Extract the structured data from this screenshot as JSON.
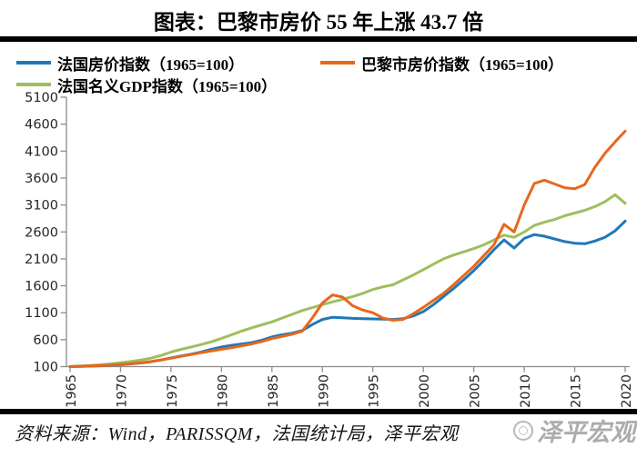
{
  "title": "图表：巴黎市房价 55 年上涨 43.7 倍",
  "legend": {
    "items": [
      {
        "label": "法国房价指数（1965=100）",
        "color": "#1F78B8"
      },
      {
        "label": "巴黎市房价指数（1965=100）",
        "color": "#E8671B"
      },
      {
        "label": "法国名义GDP指数（1965=100）",
        "color": "#9FBE5E"
      }
    ]
  },
  "source": {
    "label": "资料来源：Wind，PARISSQM，法国统计局，泽平宏观"
  },
  "watermark": {
    "label": "泽平宏观"
  },
  "chart_data": {
    "type": "line",
    "title": "图表：巴黎市房价 55 年上涨 43.7 倍",
    "xlabel": "",
    "ylabel": "",
    "ylim": [
      100,
      5100
    ],
    "yticks": [
      100,
      600,
      1100,
      1600,
      2100,
      2600,
      3100,
      3600,
      4100,
      4600,
      5100
    ],
    "xticks": [
      1965,
      1970,
      1975,
      1980,
      1985,
      1990,
      1995,
      2000,
      2005,
      2010,
      2015,
      2020
    ],
    "x_label_rotation": -90,
    "grid": false,
    "legend_position": "top-left",
    "axis_color": "#8c8c8c",
    "x": [
      1965,
      1966,
      1967,
      1968,
      1969,
      1970,
      1971,
      1972,
      1973,
      1974,
      1975,
      1976,
      1977,
      1978,
      1979,
      1980,
      1981,
      1982,
      1983,
      1984,
      1985,
      1986,
      1987,
      1988,
      1989,
      1990,
      1991,
      1992,
      1993,
      1994,
      1995,
      1996,
      1997,
      1998,
      1999,
      2000,
      2001,
      2002,
      2003,
      2004,
      2005,
      2006,
      2007,
      2008,
      2009,
      2010,
      2011,
      2012,
      2013,
      2014,
      2015,
      2016,
      2017,
      2018,
      2019,
      2020
    ],
    "series": [
      {
        "name": "法国房价指数（1965=100）",
        "color": "#1F78B8",
        "values": [
          100,
          104,
          109,
          116,
          126,
          136,
          150,
          167,
          190,
          222,
          260,
          295,
          330,
          370,
          420,
          465,
          495,
          520,
          545,
          590,
          650,
          690,
          720,
          770,
          880,
          975,
          1015,
          1005,
          995,
          990,
          985,
          980,
          975,
          990,
          1040,
          1120,
          1250,
          1400,
          1550,
          1710,
          1880,
          2070,
          2270,
          2450,
          2300,
          2480,
          2550,
          2520,
          2470,
          2420,
          2390,
          2380,
          2430,
          2500,
          2620,
          2800
        ]
      },
      {
        "name": "巴黎市房价指数（1965=100）",
        "color": "#E8671B",
        "values": [
          100,
          105,
          111,
          118,
          127,
          138,
          152,
          170,
          195,
          225,
          255,
          290,
          325,
          360,
          390,
          420,
          450,
          485,
          520,
          565,
          620,
          660,
          700,
          760,
          1000,
          1280,
          1430,
          1390,
          1230,
          1150,
          1100,
          1000,
          960,
          975,
          1080,
          1200,
          1330,
          1460,
          1620,
          1790,
          1960,
          2160,
          2360,
          2740,
          2600,
          3100,
          3500,
          3560,
          3490,
          3420,
          3400,
          3480,
          3800,
          4060,
          4270,
          4470
        ]
      },
      {
        "name": "法国名义GDP指数（1965=100）",
        "color": "#9FBE5E",
        "values": [
          100,
          110,
          120,
          133,
          150,
          172,
          195,
          222,
          256,
          305,
          370,
          420,
          465,
          510,
          560,
          625,
          690,
          760,
          820,
          875,
          930,
          1000,
          1070,
          1140,
          1195,
          1250,
          1300,
          1350,
          1400,
          1460,
          1530,
          1580,
          1620,
          1710,
          1800,
          1900,
          2000,
          2100,
          2170,
          2230,
          2290,
          2360,
          2450,
          2540,
          2500,
          2600,
          2720,
          2780,
          2830,
          2900,
          2950,
          3000,
          3070,
          3160,
          3290,
          3130
        ]
      }
    ]
  }
}
